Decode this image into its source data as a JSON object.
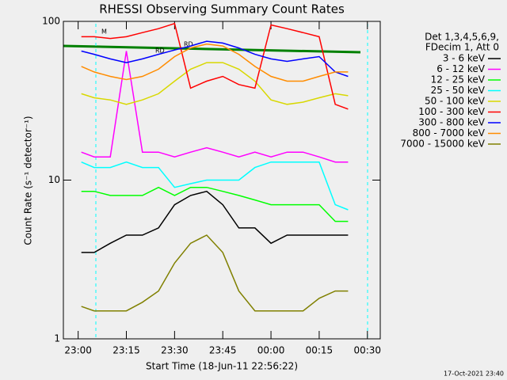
{
  "chart_data": {
    "type": "line",
    "title": "RHESSI Observing Summary Count Rates",
    "xlabel": "Start Time (18-Jun-11 22:56:22)",
    "ylabel": "Count Rate (s⁻¹ detector⁻¹)",
    "legend_header": [
      "Det 1,3,4,5,6,9,",
      "FDecim 1, Att 0"
    ],
    "footer": "17-Oct-2021 23:40",
    "annotations": [
      "RD",
      "RD",
      "M"
    ],
    "log_y": true,
    "ylim": [
      1,
      100
    ],
    "yticks": [
      1,
      10,
      100
    ],
    "xlim": [
      -4.6,
      94
    ],
    "xticks": [
      {
        "value": 0,
        "label": "23:00"
      },
      {
        "value": 15,
        "label": "23:15"
      },
      {
        "value": 30,
        "label": "23:30"
      },
      {
        "value": 45,
        "label": "23:45"
      },
      {
        "value": 60,
        "label": "00:00"
      },
      {
        "value": 75,
        "label": "00:15"
      },
      {
        "value": 90,
        "label": "00:30"
      }
    ],
    "x": [
      1,
      5,
      10,
      15,
      20,
      25,
      30,
      35,
      40,
      45,
      50,
      55,
      60,
      65,
      70,
      75,
      80,
      84
    ],
    "series": [
      {
        "name": "3 - 6 keV",
        "color": "#000000",
        "values": [
          3.5,
          3.5,
          4,
          4.5,
          4.5,
          5,
          7,
          8,
          8.5,
          7,
          5,
          5,
          4,
          4.5,
          4.5,
          4.5,
          4.5,
          4.5
        ]
      },
      {
        "name": "6 - 12 keV",
        "color": "#ff00ff",
        "values": [
          15,
          14,
          14,
          65,
          15,
          15,
          14,
          15,
          16,
          15,
          14,
          15,
          14,
          15,
          15,
          14,
          13,
          13
        ]
      },
      {
        "name": "12 - 25 keV",
        "color": "#00ff00",
        "values": [
          8.5,
          8.5,
          8,
          8,
          8,
          9,
          8,
          9,
          9,
          8.5,
          8,
          7.5,
          7,
          7,
          7,
          7,
          5.5,
          5.5
        ]
      },
      {
        "name": "25 - 50 keV",
        "color": "#00ffff",
        "values": [
          13,
          12,
          12,
          13,
          12,
          12,
          9,
          9.5,
          10,
          10,
          10,
          12,
          13,
          13,
          13,
          13,
          7,
          6.5
        ]
      },
      {
        "name": "50 - 100 keV",
        "color": "#d8d800",
        "values": [
          35,
          33,
          32,
          30,
          32,
          35,
          42,
          50,
          55,
          55,
          50,
          42,
          32,
          30,
          31,
          33,
          35,
          34
        ]
      },
      {
        "name": "100 - 300 keV",
        "color": "#ff0000",
        "values": [
          80,
          80,
          78,
          80,
          85,
          90,
          97,
          38,
          42,
          45,
          40,
          38,
          95,
          90,
          85,
          80,
          30,
          28
        ]
      },
      {
        "name": "300 - 800 keV",
        "color": "#0000ff",
        "values": [
          65,
          62,
          58,
          55,
          58,
          62,
          66,
          70,
          75,
          73,
          68,
          62,
          58,
          56,
          58,
          60,
          48,
          45
        ]
      },
      {
        "name": "800 - 7000 keV",
        "color": "#ff8c00",
        "values": [
          52,
          48,
          45,
          43,
          45,
          50,
          60,
          68,
          72,
          70,
          62,
          52,
          45,
          42,
          42,
          45,
          48,
          48
        ]
      },
      {
        "name": "7000 - 15000 keV",
        "color": "#808000",
        "values": [
          1.6,
          1.5,
          1.5,
          1.5,
          1.7,
          2,
          3,
          4,
          4.5,
          3.5,
          2,
          1.5,
          1.5,
          1.5,
          1.5,
          1.8,
          2,
          2
        ]
      }
    ]
  }
}
